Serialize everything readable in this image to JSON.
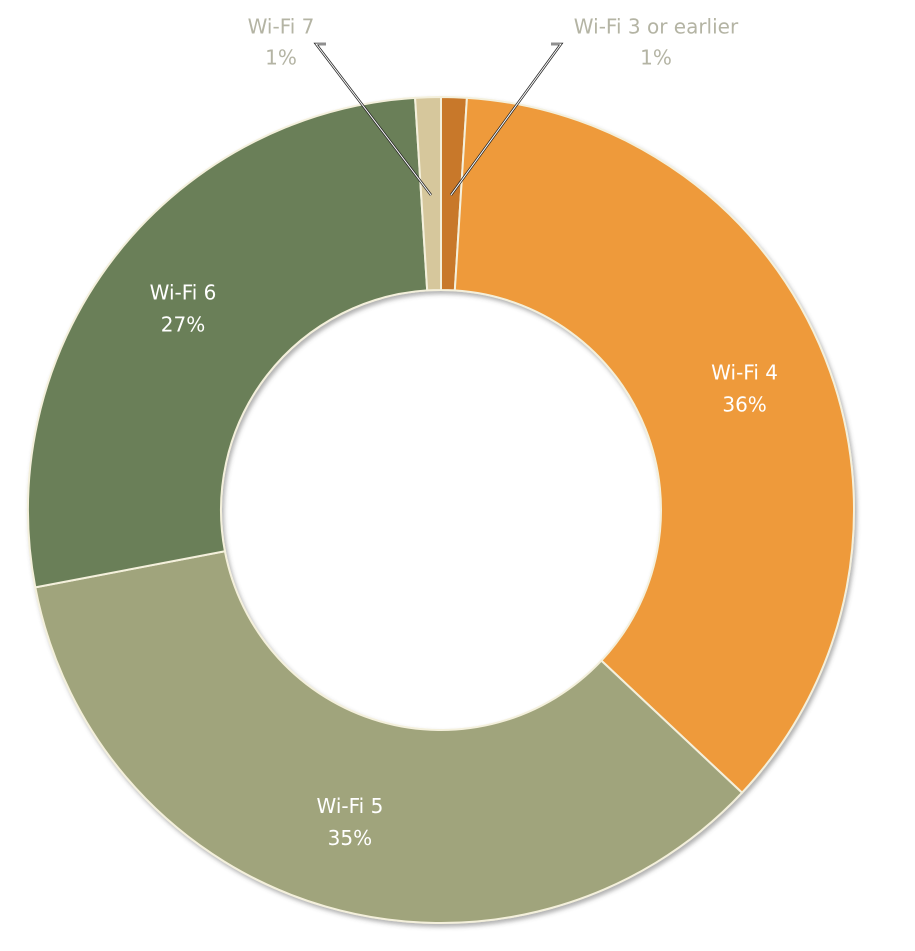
{
  "chart_data": {
    "type": "donut",
    "categories": [
      "Wi-Fi 3 or earlier",
      "Wi-Fi 4",
      "Wi-Fi 5",
      "Wi-Fi 6",
      "Wi-Fi 7"
    ],
    "values": [
      1,
      36,
      35,
      27,
      1
    ],
    "value_labels": [
      "1%",
      "36%",
      "35%",
      "27%",
      "1%"
    ],
    "colors": [
      "#c8782a",
      "#ee9a3a",
      "#a0a47c",
      "#6b7f58",
      "#d6c79c"
    ]
  }
}
